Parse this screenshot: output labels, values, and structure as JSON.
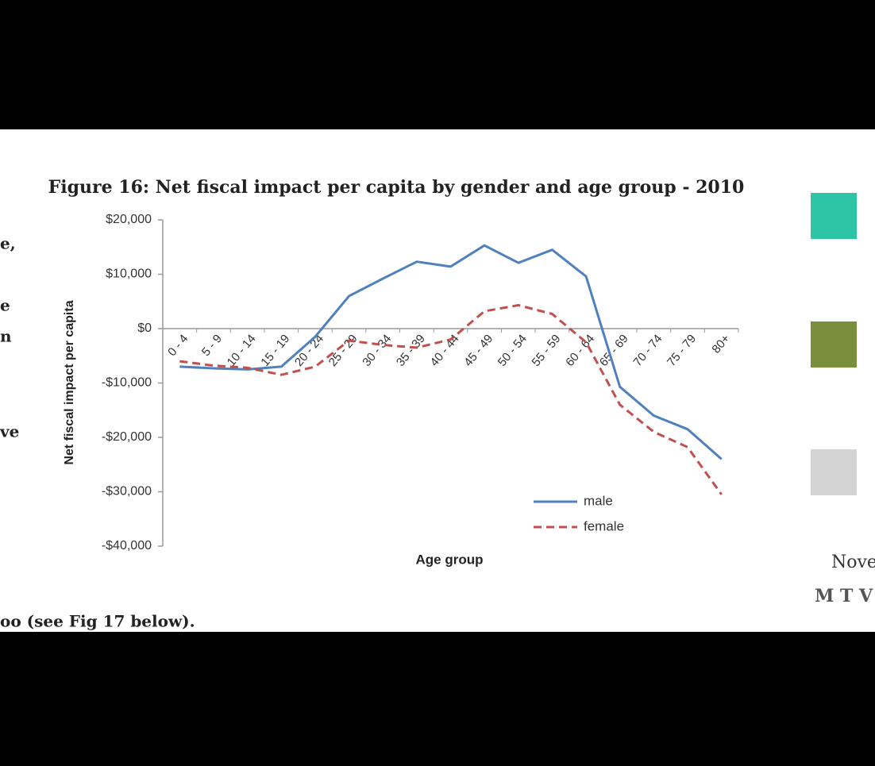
{
  "chart_data": {
    "type": "line",
    "title": "Figure 16: Net fiscal impact per capita by gender and age group - 2010",
    "x_label": "Age group",
    "y_label": "Net fiscal impact per capita",
    "categories": [
      "0 - 4",
      "5 - 9",
      "10 - 14",
      "15 - 19",
      "20 - 24",
      "25 - 29",
      "30 - 34",
      "35 - 39",
      "40 - 44",
      "45 - 49",
      "50 - 54",
      "55 - 59",
      "60 - 64",
      "65 - 69",
      "70 - 74",
      "75 - 79",
      "80+"
    ],
    "series": [
      {
        "name": "male",
        "color": "#4f81bd",
        "dash": false,
        "values": [
          -7000,
          -7300,
          -7500,
          -7000,
          -1500,
          6000,
          9200,
          12300,
          11400,
          15300,
          12100,
          14500,
          9600,
          -10700,
          -16000,
          -18500,
          -24000
        ]
      },
      {
        "name": "female",
        "color": "#c0504d",
        "dash": true,
        "values": [
          -6000,
          -6800,
          -7200,
          -8500,
          -7000,
          -2200,
          -3000,
          -3500,
          -2000,
          3200,
          4300,
          2700,
          -2500,
          -14000,
          -19000,
          -21800,
          -30500
        ]
      }
    ],
    "ylim": [
      -40000,
      20000
    ],
    "yticks": [
      {
        "value": -40000,
        "label": "-$40,000"
      },
      {
        "value": -30000,
        "label": "-$30,000"
      },
      {
        "value": -20000,
        "label": "-$20,000"
      },
      {
        "value": -10000,
        "label": "-$10,000"
      },
      {
        "value": 0,
        "label": "$0"
      },
      {
        "value": 10000,
        "label": "$10,000"
      },
      {
        "value": 20000,
        "label": "$20,000"
      }
    ],
    "grid": false,
    "legend": "lower right"
  },
  "page_text": {
    "left_fragments": [
      "e,",
      "e",
      "n",
      "ve"
    ],
    "caption": "oo (see Fig 17 below).",
    "sidebar": [
      "Nove",
      "M T V"
    ]
  }
}
